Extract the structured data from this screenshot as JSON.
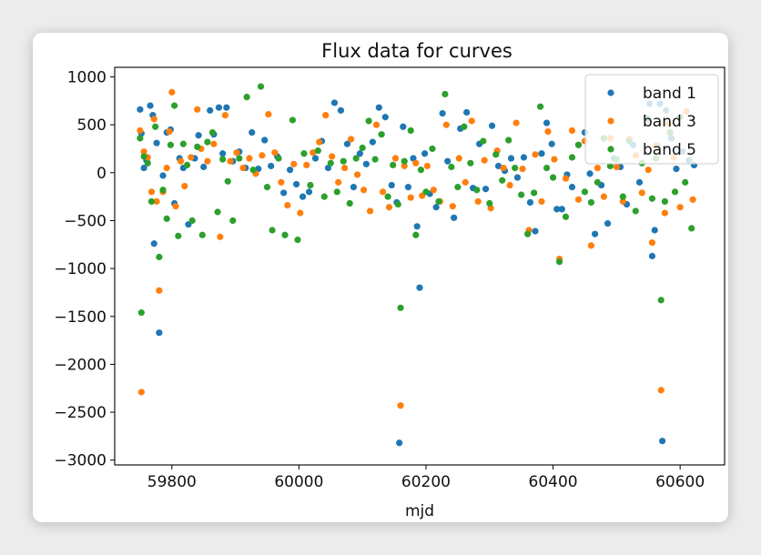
{
  "chart_data": {
    "type": "scatter",
    "title": "Flux data for curves",
    "xlabel": "mjd",
    "ylabel": "",
    "xlim": [
      59710,
      60670
    ],
    "ylim": [
      -3050,
      1100
    ],
    "xticks": [
      59800,
      60000,
      60200,
      60400,
      60600
    ],
    "yticks": [
      1000,
      500,
      0,
      -500,
      -1000,
      -1500,
      -2000,
      -2500,
      -3000
    ],
    "grid": false,
    "legend_position": "top-right",
    "series": [
      {
        "name": "band 1",
        "color": "#1f77b4",
        "points": [
          [
            59750,
            660
          ],
          [
            59752,
            410
          ],
          [
            59756,
            50
          ],
          [
            59760,
            130
          ],
          [
            59766,
            700
          ],
          [
            59770,
            600
          ],
          [
            59772,
            -740
          ],
          [
            59776,
            310
          ],
          [
            59780,
            -1670
          ],
          [
            59786,
            -30
          ],
          [
            59792,
            420
          ],
          [
            59798,
            450
          ],
          [
            59804,
            -320
          ],
          [
            59812,
            150
          ],
          [
            59818,
            50
          ],
          [
            59826,
            -540
          ],
          [
            59836,
            150
          ],
          [
            59842,
            390
          ],
          [
            59850,
            60
          ],
          [
            59860,
            650
          ],
          [
            59866,
            400
          ],
          [
            59874,
            680
          ],
          [
            59880,
            200
          ],
          [
            59886,
            680
          ],
          [
            59896,
            120
          ],
          [
            59906,
            220
          ],
          [
            59916,
            50
          ],
          [
            59926,
            420
          ],
          [
            59936,
            40
          ],
          [
            59946,
            340
          ],
          [
            59956,
            70
          ],
          [
            59966,
            170
          ],
          [
            59976,
            -210
          ],
          [
            59986,
            30
          ],
          [
            59996,
            -120
          ],
          [
            60006,
            -250
          ],
          [
            60016,
            -200
          ],
          [
            60026,
            150
          ],
          [
            60036,
            330
          ],
          [
            60046,
            50
          ],
          [
            60056,
            730
          ],
          [
            60066,
            650
          ],
          [
            60076,
            300
          ],
          [
            60086,
            -150
          ],
          [
            60096,
            200
          ],
          [
            60106,
            90
          ],
          [
            60116,
            320
          ],
          [
            60126,
            680
          ],
          [
            60136,
            580
          ],
          [
            60146,
            -130
          ],
          [
            60154,
            -310
          ],
          [
            60158,
            -2820
          ],
          [
            60164,
            480
          ],
          [
            60172,
            -150
          ],
          [
            60180,
            150
          ],
          [
            60186,
            -560
          ],
          [
            60190,
            -1200
          ],
          [
            60198,
            200
          ],
          [
            60206,
            -220
          ],
          [
            60216,
            -360
          ],
          [
            60226,
            620
          ],
          [
            60234,
            120
          ],
          [
            60244,
            -470
          ],
          [
            60254,
            460
          ],
          [
            60264,
            630
          ],
          [
            60274,
            -160
          ],
          [
            60284,
            300
          ],
          [
            60294,
            -170
          ],
          [
            60304,
            490
          ],
          [
            60314,
            70
          ],
          [
            60324,
            20
          ],
          [
            60334,
            150
          ],
          [
            60344,
            -50
          ],
          [
            60354,
            160
          ],
          [
            60364,
            -310
          ],
          [
            60372,
            -610
          ],
          [
            60382,
            200
          ],
          [
            60390,
            520
          ],
          [
            60398,
            300
          ],
          [
            60406,
            -380
          ],
          [
            60414,
            -380
          ],
          [
            60422,
            -20
          ],
          [
            60430,
            -150
          ],
          [
            60440,
            290
          ],
          [
            60450,
            420
          ],
          [
            60458,
            -10
          ],
          [
            60466,
            -640
          ],
          [
            60476,
            -130
          ],
          [
            60486,
            -530
          ],
          [
            60496,
            150
          ],
          [
            60506,
            60
          ],
          [
            60516,
            -330
          ],
          [
            60526,
            290
          ],
          [
            60536,
            -100
          ],
          [
            60546,
            570
          ],
          [
            60552,
            720
          ],
          [
            60556,
            -870
          ],
          [
            60560,
            -600
          ],
          [
            60564,
            280
          ],
          [
            60568,
            720
          ],
          [
            60572,
            -2800
          ],
          [
            60578,
            650
          ],
          [
            60586,
            360
          ],
          [
            60594,
            40
          ],
          [
            60604,
            220
          ],
          [
            60614,
            130
          ],
          [
            60622,
            80
          ]
        ]
      },
      {
        "name": "band 3",
        "color": "#ff7f0e",
        "points": [
          [
            59750,
            440
          ],
          [
            59752,
            -2290
          ],
          [
            59756,
            220
          ],
          [
            59762,
            160
          ],
          [
            59768,
            -200
          ],
          [
            59772,
            560
          ],
          [
            59776,
            -300
          ],
          [
            59780,
            -1230
          ],
          [
            59786,
            -200
          ],
          [
            59792,
            50
          ],
          [
            59796,
            430
          ],
          [
            59800,
            840
          ],
          [
            59806,
            -350
          ],
          [
            59814,
            120
          ],
          [
            59820,
            -140
          ],
          [
            59830,
            160
          ],
          [
            59840,
            660
          ],
          [
            59846,
            250
          ],
          [
            59856,
            120
          ],
          [
            59866,
            300
          ],
          [
            59876,
            -670
          ],
          [
            59884,
            600
          ],
          [
            59892,
            120
          ],
          [
            59902,
            210
          ],
          [
            59912,
            50
          ],
          [
            59922,
            150
          ],
          [
            59932,
            -10
          ],
          [
            59942,
            180
          ],
          [
            59952,
            610
          ],
          [
            59962,
            210
          ],
          [
            59972,
            -100
          ],
          [
            59982,
            -340
          ],
          [
            59992,
            90
          ],
          [
            60002,
            -420
          ],
          [
            60012,
            80
          ],
          [
            60022,
            210
          ],
          [
            60032,
            320
          ],
          [
            60042,
            600
          ],
          [
            60052,
            170
          ],
          [
            60062,
            -100
          ],
          [
            60072,
            50
          ],
          [
            60082,
            350
          ],
          [
            60092,
            -20
          ],
          [
            60102,
            -180
          ],
          [
            60112,
            -400
          ],
          [
            60122,
            500
          ],
          [
            60132,
            -200
          ],
          [
            60142,
            -360
          ],
          [
            60152,
            150
          ],
          [
            60160,
            -2430
          ],
          [
            60166,
            70
          ],
          [
            60176,
            -260
          ],
          [
            60184,
            100
          ],
          [
            60194,
            -240
          ],
          [
            60202,
            70
          ],
          [
            60212,
            -180
          ],
          [
            60222,
            -300
          ],
          [
            60232,
            500
          ],
          [
            60242,
            -350
          ],
          [
            60252,
            150
          ],
          [
            60262,
            -100
          ],
          [
            60272,
            540
          ],
          [
            60282,
            -300
          ],
          [
            60292,
            130
          ],
          [
            60302,
            -370
          ],
          [
            60312,
            230
          ],
          [
            60322,
            50
          ],
          [
            60332,
            -130
          ],
          [
            60342,
            520
          ],
          [
            60352,
            40
          ],
          [
            60362,
            -600
          ],
          [
            60372,
            190
          ],
          [
            60382,
            -300
          ],
          [
            60392,
            430
          ],
          [
            60402,
            140
          ],
          [
            60410,
            -900
          ],
          [
            60420,
            -60
          ],
          [
            60430,
            440
          ],
          [
            60440,
            -280
          ],
          [
            60450,
            330
          ],
          [
            60460,
            -760
          ],
          [
            60470,
            50
          ],
          [
            60480,
            -250
          ],
          [
            60490,
            360
          ],
          [
            60500,
            60
          ],
          [
            60510,
            -300
          ],
          [
            60520,
            350
          ],
          [
            60530,
            180
          ],
          [
            60540,
            -210
          ],
          [
            60550,
            30
          ],
          [
            60556,
            -730
          ],
          [
            60562,
            280
          ],
          [
            60570,
            -2270
          ],
          [
            60576,
            -420
          ],
          [
            60582,
            510
          ],
          [
            60590,
            160
          ],
          [
            60600,
            -360
          ],
          [
            60610,
            640
          ],
          [
            60620,
            -280
          ]
        ]
      },
      {
        "name": "band 5",
        "color": "#2ca02c",
        "points": [
          [
            59750,
            360
          ],
          [
            59752,
            -1460
          ],
          [
            59756,
            170
          ],
          [
            59762,
            100
          ],
          [
            59768,
            -300
          ],
          [
            59774,
            480
          ],
          [
            59780,
            -880
          ],
          [
            59786,
            -180
          ],
          [
            59792,
            -480
          ],
          [
            59798,
            290
          ],
          [
            59804,
            700
          ],
          [
            59810,
            -660
          ],
          [
            59818,
            300
          ],
          [
            59824,
            80
          ],
          [
            59832,
            -500
          ],
          [
            59840,
            270
          ],
          [
            59848,
            -650
          ],
          [
            59856,
            320
          ],
          [
            59864,
            420
          ],
          [
            59872,
            -410
          ],
          [
            59880,
            140
          ],
          [
            59888,
            -90
          ],
          [
            59896,
            -500
          ],
          [
            59906,
            150
          ],
          [
            59918,
            790
          ],
          [
            59928,
            30
          ],
          [
            59940,
            900
          ],
          [
            59950,
            -150
          ],
          [
            59958,
            -600
          ],
          [
            59968,
            150
          ],
          [
            59978,
            -650
          ],
          [
            59990,
            550
          ],
          [
            59998,
            -700
          ],
          [
            60008,
            200
          ],
          [
            60018,
            -130
          ],
          [
            60030,
            230
          ],
          [
            60040,
            -250
          ],
          [
            60050,
            100
          ],
          [
            60060,
            -200
          ],
          [
            60070,
            120
          ],
          [
            60080,
            -320
          ],
          [
            60090,
            150
          ],
          [
            60100,
            260
          ],
          [
            60110,
            540
          ],
          [
            60120,
            140
          ],
          [
            60130,
            400
          ],
          [
            60140,
            -250
          ],
          [
            60148,
            80
          ],
          [
            60156,
            -330
          ],
          [
            60160,
            -1410
          ],
          [
            60166,
            120
          ],
          [
            60176,
            440
          ],
          [
            60184,
            -650
          ],
          [
            60192,
            30
          ],
          [
            60200,
            -200
          ],
          [
            60210,
            250
          ],
          [
            60220,
            -300
          ],
          [
            60230,
            820
          ],
          [
            60240,
            60
          ],
          [
            60250,
            -150
          ],
          [
            60260,
            480
          ],
          [
            60270,
            100
          ],
          [
            60280,
            -180
          ],
          [
            60290,
            330
          ],
          [
            60300,
            -320
          ],
          [
            60310,
            190
          ],
          [
            60320,
            -80
          ],
          [
            60330,
            340
          ],
          [
            60340,
            50
          ],
          [
            60350,
            -230
          ],
          [
            60360,
            -640
          ],
          [
            60370,
            -210
          ],
          [
            60380,
            690
          ],
          [
            60390,
            50
          ],
          [
            60400,
            -50
          ],
          [
            60410,
            -930
          ],
          [
            60420,
            -460
          ],
          [
            60430,
            160
          ],
          [
            60440,
            290
          ],
          [
            60450,
            -200
          ],
          [
            60460,
            -310
          ],
          [
            60470,
            -100
          ],
          [
            60480,
            360
          ],
          [
            60490,
            70
          ],
          [
            60500,
            140
          ],
          [
            60510,
            -250
          ],
          [
            60520,
            330
          ],
          [
            60530,
            -400
          ],
          [
            60540,
            100
          ],
          [
            60550,
            560
          ],
          [
            60556,
            -270
          ],
          [
            60562,
            150
          ],
          [
            60570,
            -1330
          ],
          [
            60576,
            -300
          ],
          [
            60584,
            420
          ],
          [
            60592,
            -200
          ],
          [
            60600,
            580
          ],
          [
            60608,
            -100
          ],
          [
            60618,
            -580
          ]
        ]
      }
    ]
  }
}
